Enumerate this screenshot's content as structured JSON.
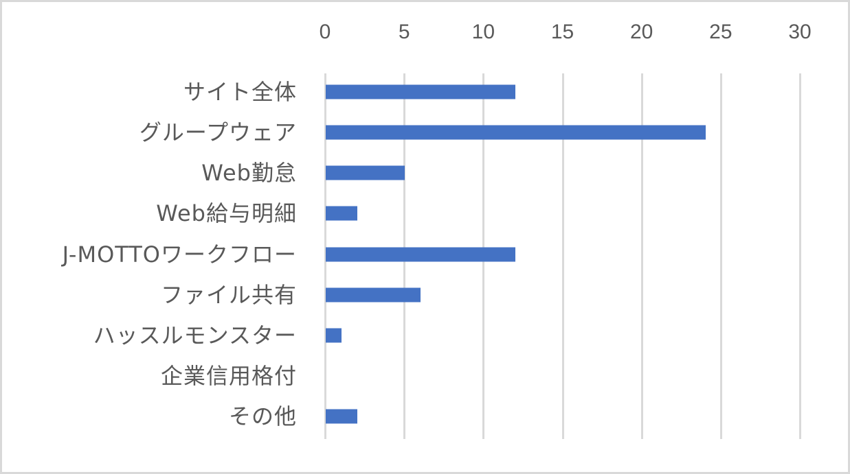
{
  "chart_data": {
    "type": "bar",
    "orientation": "horizontal",
    "title": "",
    "xlabel": "",
    "ylabel": "",
    "xlim": [
      0,
      30
    ],
    "x_ticks": [
      "0",
      "5",
      "10",
      "15",
      "20",
      "25",
      "30"
    ],
    "x_axis_position": "top",
    "grid": true,
    "legend": null,
    "bar_color": "#4472c4",
    "gridline_color": "#d9d9d9",
    "text_color": "#595959",
    "categories": [
      "サイト全体",
      "グループウェア",
      "Web勤怠",
      "Web給与明細",
      "J-MOTTOワークフロー",
      "ファイル共有",
      "ハッスルモンスター",
      "企業信用格付",
      "その他"
    ],
    "values": [
      12,
      24,
      5,
      2,
      12,
      6,
      1,
      0,
      2
    ]
  }
}
